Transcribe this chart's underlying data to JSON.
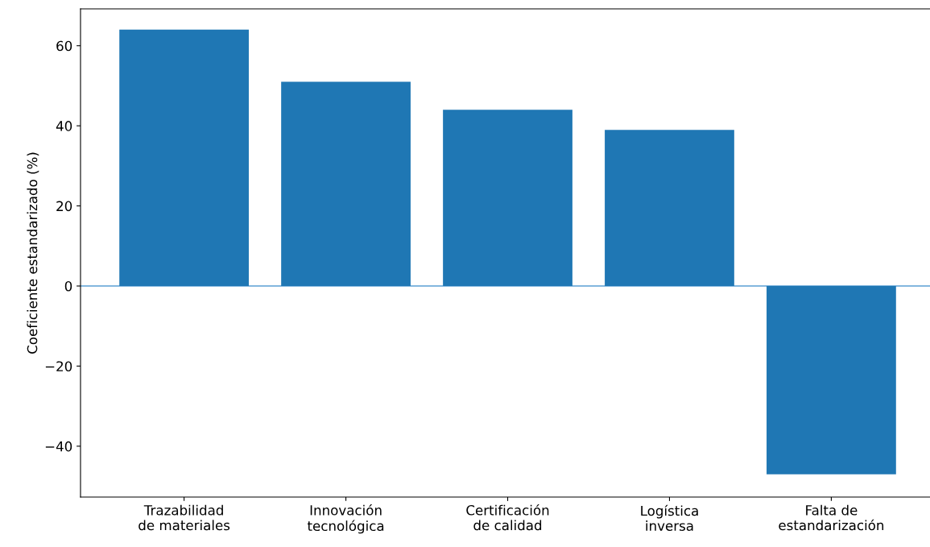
{
  "chart_data": {
    "type": "bar",
    "ylabel": "Coeficiente estandarizado (%)",
    "categories": [
      "Trazabilidad\nde materiales",
      "Innovación\ntecnológica",
      "Certificación\nde calidad",
      "Logística\ninversa",
      "Falta de\nestandarización"
    ],
    "values": [
      64,
      51,
      44,
      39,
      -47
    ],
    "color": "#1f77b4",
    "ylim": [
      -52.7,
      69.2
    ],
    "yticks": [
      -40,
      -20,
      0,
      20,
      40,
      60
    ],
    "ref_lines": [
      {
        "axis": "y",
        "value": 0,
        "color": "#5a9fd4"
      }
    ]
  }
}
